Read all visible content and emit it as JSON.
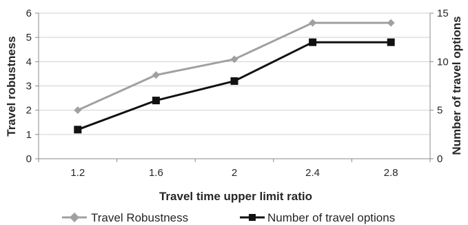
{
  "chart_data": {
    "type": "line",
    "title": "",
    "xlabel": "Travel time upper limit ratio",
    "ylabel_left": "Travel robustness",
    "ylabel_right": "Number  of travel options",
    "categories": [
      "1.2",
      "1.6",
      "2",
      "2.4",
      "2.8"
    ],
    "y_left": {
      "lim": [
        0,
        6
      ],
      "ticks": [
        "0",
        "1",
        "2",
        "3",
        "4",
        "5",
        "6"
      ]
    },
    "y_right": {
      "lim": [
        0,
        15
      ],
      "ticks": [
        "0",
        "5",
        "10",
        "15"
      ]
    },
    "grid": "horizontal",
    "legend_position": "bottom",
    "series": [
      {
        "name": "Travel Robustness",
        "axis": "left",
        "values": [
          2.0,
          3.45,
          4.1,
          5.6,
          5.6
        ],
        "color": "#a0a0a0",
        "marker": "diamond"
      },
      {
        "name": "Number of travel options",
        "axis": "right",
        "values": [
          3,
          6,
          8,
          12,
          12
        ],
        "color": "#111111",
        "marker": "square"
      }
    ]
  }
}
